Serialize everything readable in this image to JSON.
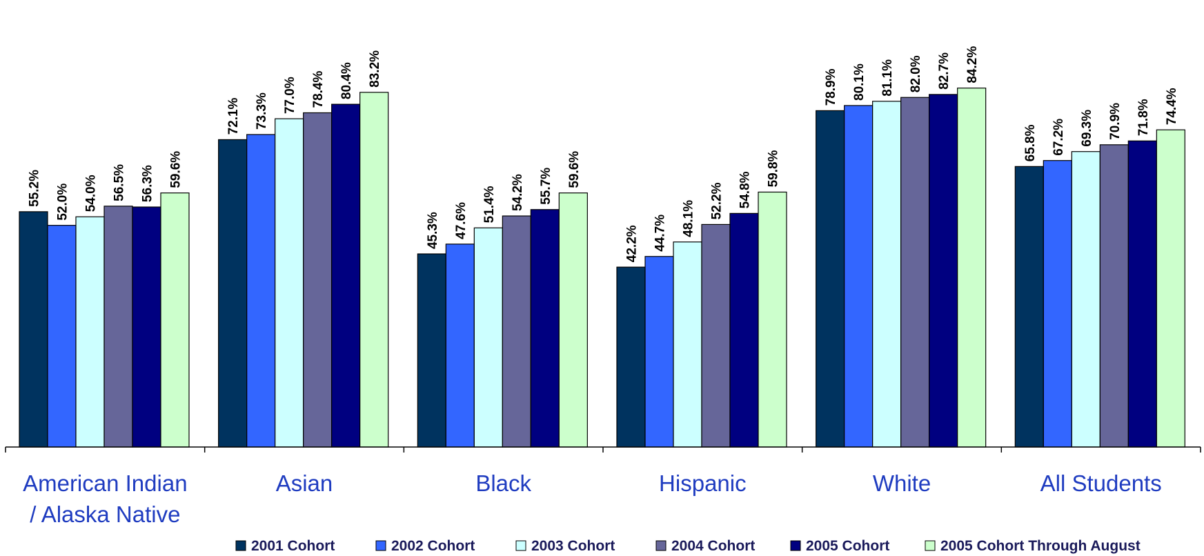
{
  "chart_data": {
    "type": "bar",
    "categories": [
      [
        "American Indian",
        "/ Alaska Native"
      ],
      [
        "Asian"
      ],
      [
        "Black"
      ],
      [
        "Hispanic"
      ],
      [
        "White"
      ],
      [
        "All Students"
      ]
    ],
    "ylim": [
      0,
      100
    ],
    "grid": false,
    "legend_position": "bottom",
    "value_format": "percent_one_decimal",
    "series": [
      {
        "name": "2001 Cohort",
        "color": "#00335f",
        "values": [
          55.2,
          72.1,
          45.3,
          42.2,
          78.9,
          65.8
        ]
      },
      {
        "name": "2002 Cohort",
        "color": "#3366ff",
        "values": [
          52.0,
          73.3,
          47.6,
          44.7,
          80.1,
          67.2
        ]
      },
      {
        "name": "2003 Cohort",
        "color": "#ccffff",
        "values": [
          54.0,
          77.0,
          51.4,
          48.1,
          81.1,
          69.3
        ]
      },
      {
        "name": "2004 Cohort",
        "color": "#666699",
        "values": [
          56.5,
          78.4,
          54.2,
          52.2,
          82.0,
          70.9
        ]
      },
      {
        "name": "2005 Cohort",
        "color": "#000080",
        "values": [
          56.3,
          80.4,
          55.7,
          54.8,
          82.7,
          71.8
        ]
      },
      {
        "name": "2005 Cohort Through August",
        "color": "#ccffcc",
        "values": [
          59.6,
          83.2,
          59.6,
          59.8,
          84.2,
          74.4
        ]
      }
    ]
  }
}
